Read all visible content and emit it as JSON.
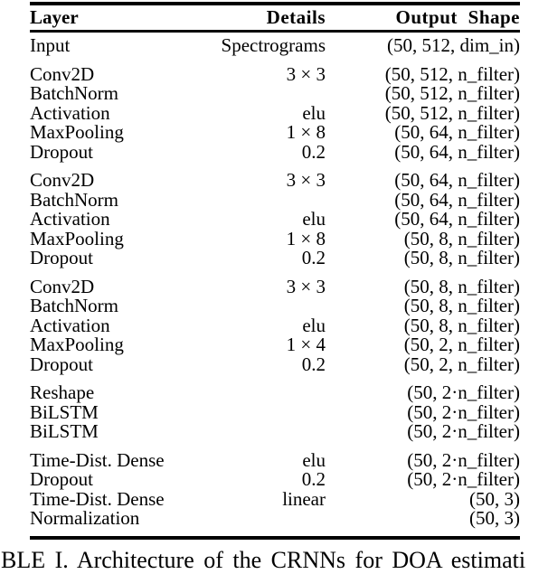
{
  "colors": {
    "text": "#000000",
    "background": "#ffffff",
    "rule": "#000000"
  },
  "table": {
    "headers": [
      "Layer",
      "Details",
      "Output Shape"
    ],
    "groups": [
      {
        "rows": [
          {
            "layer": "Input",
            "details": "Spectrograms",
            "output": "(50, 512, dim_in)"
          }
        ]
      },
      {
        "rows": [
          {
            "layer": "Conv2D",
            "details": "3 × 3",
            "output": "(50, 512, n_filter)"
          },
          {
            "layer": "BatchNorm",
            "details": "",
            "output": "(50, 512, n_filter)"
          },
          {
            "layer": "Activation",
            "details": "elu",
            "output": "(50, 512, n_filter)"
          },
          {
            "layer": "MaxPooling",
            "details": "1 × 8",
            "output": "(50, 64, n_filter)"
          },
          {
            "layer": "Dropout",
            "details": "0.2",
            "output": "(50, 64, n_filter)"
          }
        ]
      },
      {
        "rows": [
          {
            "layer": "Conv2D",
            "details": "3 × 3",
            "output": "(50, 64, n_filter)"
          },
          {
            "layer": "BatchNorm",
            "details": "",
            "output": "(50, 64, n_filter)"
          },
          {
            "layer": "Activation",
            "details": "elu",
            "output": "(50, 64, n_filter)"
          },
          {
            "layer": "MaxPooling",
            "details": "1 × 8",
            "output": "(50, 8, n_filter)"
          },
          {
            "layer": "Dropout",
            "details": "0.2",
            "output": "(50, 8, n_filter)"
          }
        ]
      },
      {
        "rows": [
          {
            "layer": "Conv2D",
            "details": "3 × 3",
            "output": "(50, 8, n_filter)"
          },
          {
            "layer": "BatchNorm",
            "details": "",
            "output": "(50, 8, n_filter)"
          },
          {
            "layer": "Activation",
            "details": "elu",
            "output": "(50, 8, n_filter)"
          },
          {
            "layer": "MaxPooling",
            "details": "1 × 4",
            "output": "(50, 2, n_filter)"
          },
          {
            "layer": "Dropout",
            "details": "0.2",
            "output": "(50, 2, n_filter)"
          }
        ]
      },
      {
        "rows": [
          {
            "layer": "Reshape",
            "details": "",
            "output": "(50, 2·n_filter)"
          },
          {
            "layer": "BiLSTM",
            "details": "",
            "output": "(50, 2·n_filter)"
          },
          {
            "layer": "BiLSTM",
            "details": "",
            "output": "(50, 2·n_filter)"
          }
        ]
      },
      {
        "rows": [
          {
            "layer": "Time-Dist. Dense",
            "details": "elu",
            "output": "(50, 2·n_filter)"
          },
          {
            "layer": "Dropout",
            "details": "0.2",
            "output": "(50, 2·n_filter)"
          },
          {
            "layer": "Time-Dist. Dense",
            "details": "linear",
            "output": "(50, 3)"
          },
          {
            "layer": "Normalization",
            "details": "",
            "output": "(50, 3)"
          }
        ]
      }
    ]
  },
  "caption": "BLE I. Architecture of the CRNNs for DOA estimati"
}
